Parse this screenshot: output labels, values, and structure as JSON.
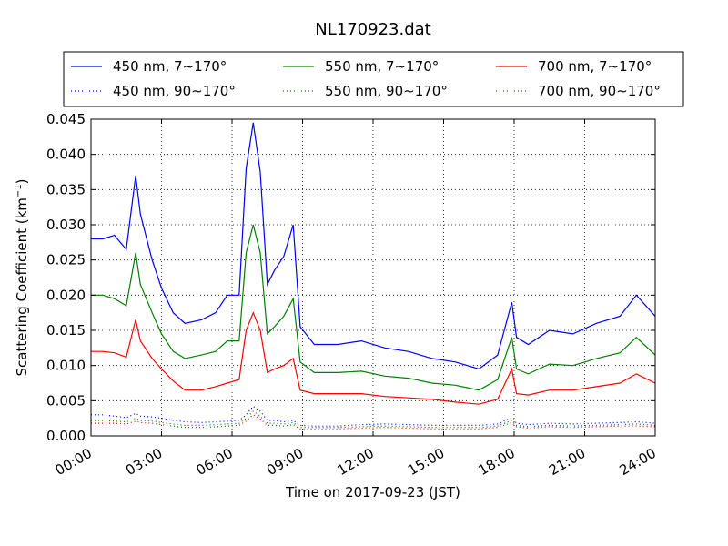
{
  "chart_data": {
    "type": "line",
    "title": "NL170923.dat",
    "xlabel": "Time on 2017-09-23 (JST)",
    "ylabel": "Scattering Coefficient (km",
    "ylabel_sup": "−1",
    "ylabel_close": ")",
    "xlim": [
      0,
      24
    ],
    "ylim": [
      0,
      0.045
    ],
    "x_tick_labels": [
      "00:00",
      "03:00",
      "06:00",
      "09:00",
      "12:00",
      "15:00",
      "18:00",
      "21:00",
      "24:00"
    ],
    "y_tick_labels": [
      "0.000",
      "0.005",
      "0.010",
      "0.015",
      "0.020",
      "0.025",
      "0.030",
      "0.035",
      "0.040",
      "0.045"
    ],
    "grid": true,
    "legend_position": "top",
    "x": [
      0,
      0.5,
      1,
      1.5,
      1.9,
      2.1,
      2.6,
      3,
      3.5,
      4,
      4.7,
      5.3,
      5.8,
      6.3,
      6.6,
      6.9,
      7.2,
      7.5,
      7.8,
      8.2,
      8.6,
      8.9,
      9.5,
      10.5,
      11.5,
      12.5,
      13.5,
      14.5,
      15.5,
      16.5,
      17.3,
      17.9,
      18.1,
      18.6,
      19.5,
      20.5,
      21.5,
      22.5,
      23.2,
      24
    ],
    "series": [
      {
        "name": "450 nm, 7∼170°",
        "color": "#0000ff",
        "style": "solid",
        "values": [
          0.028,
          0.028,
          0.0285,
          0.0265,
          0.037,
          0.0315,
          0.025,
          0.021,
          0.0175,
          0.016,
          0.0165,
          0.0175,
          0.02,
          0.02,
          0.038,
          0.0445,
          0.0375,
          0.0215,
          0.0235,
          0.0255,
          0.03,
          0.0155,
          0.013,
          0.013,
          0.0135,
          0.0125,
          0.012,
          0.011,
          0.0105,
          0.0095,
          0.0115,
          0.019,
          0.014,
          0.013,
          0.015,
          0.0145,
          0.016,
          0.017,
          0.02,
          0.017
        ]
      },
      {
        "name": "450 nm, 90∼170°",
        "color": "#0000ff",
        "style": "dotted",
        "values": [
          0.003,
          0.003,
          0.0028,
          0.0026,
          0.0032,
          0.0028,
          0.0027,
          0.0025,
          0.0022,
          0.002,
          0.0019,
          0.002,
          0.0021,
          0.0022,
          0.003,
          0.0042,
          0.0035,
          0.0022,
          0.0022,
          0.002,
          0.0022,
          0.0015,
          0.0014,
          0.0014,
          0.0016,
          0.0017,
          0.0016,
          0.0015,
          0.0015,
          0.0015,
          0.0017,
          0.0026,
          0.0018,
          0.0016,
          0.0018,
          0.0017,
          0.0018,
          0.0019,
          0.002,
          0.0018
        ]
      },
      {
        "name": "550 nm, 7∼170°",
        "color": "#008000",
        "style": "solid",
        "values": [
          0.02,
          0.02,
          0.0195,
          0.0185,
          0.026,
          0.0215,
          0.0175,
          0.0145,
          0.012,
          0.011,
          0.0115,
          0.012,
          0.0135,
          0.0135,
          0.026,
          0.03,
          0.026,
          0.0145,
          0.0155,
          0.017,
          0.0195,
          0.0105,
          0.009,
          0.009,
          0.0092,
          0.0085,
          0.0082,
          0.0075,
          0.0072,
          0.0065,
          0.008,
          0.014,
          0.0095,
          0.0088,
          0.0102,
          0.01,
          0.011,
          0.0118,
          0.014,
          0.0115
        ]
      },
      {
        "name": "550 nm, 90∼170°",
        "color": "#008000",
        "style": "dotted",
        "values": [
          0.0022,
          0.0022,
          0.0021,
          0.002,
          0.0025,
          0.0022,
          0.0021,
          0.0019,
          0.0017,
          0.0015,
          0.0015,
          0.0016,
          0.0017,
          0.0018,
          0.0025,
          0.0035,
          0.0028,
          0.0018,
          0.0018,
          0.0017,
          0.0019,
          0.0012,
          0.0012,
          0.0012,
          0.0013,
          0.0014,
          0.0013,
          0.0012,
          0.0012,
          0.0012,
          0.0014,
          0.0022,
          0.0015,
          0.0013,
          0.0015,
          0.0014,
          0.0015,
          0.0016,
          0.0017,
          0.0015
        ]
      },
      {
        "name": "700 nm, 7∼170°",
        "color": "#ff0000",
        "style": "solid",
        "values": [
          0.012,
          0.012,
          0.0118,
          0.0112,
          0.0165,
          0.0135,
          0.011,
          0.0095,
          0.0078,
          0.0065,
          0.0065,
          0.007,
          0.0075,
          0.008,
          0.015,
          0.0175,
          0.015,
          0.009,
          0.0095,
          0.01,
          0.011,
          0.0065,
          0.006,
          0.006,
          0.006,
          0.0056,
          0.0054,
          0.0052,
          0.0048,
          0.0045,
          0.0052,
          0.0095,
          0.006,
          0.0058,
          0.0065,
          0.0065,
          0.007,
          0.0075,
          0.0088,
          0.0075
        ]
      },
      {
        "name": "700 nm, 90∼170°",
        "color": "#ff0000",
        "style": "dotted",
        "values": [
          0.0018,
          0.0018,
          0.0018,
          0.0017,
          0.0021,
          0.0019,
          0.0018,
          0.0016,
          0.0014,
          0.0012,
          0.0012,
          0.0013,
          0.0014,
          0.0015,
          0.0021,
          0.003,
          0.0024,
          0.0015,
          0.0015,
          0.0014,
          0.0016,
          0.001,
          0.001,
          0.001,
          0.0011,
          0.0012,
          0.0011,
          0.001,
          0.001,
          0.001,
          0.0012,
          0.0019,
          0.0013,
          0.0011,
          0.0013,
          0.0012,
          0.0013,
          0.0014,
          0.0014,
          0.0013
        ]
      }
    ]
  }
}
